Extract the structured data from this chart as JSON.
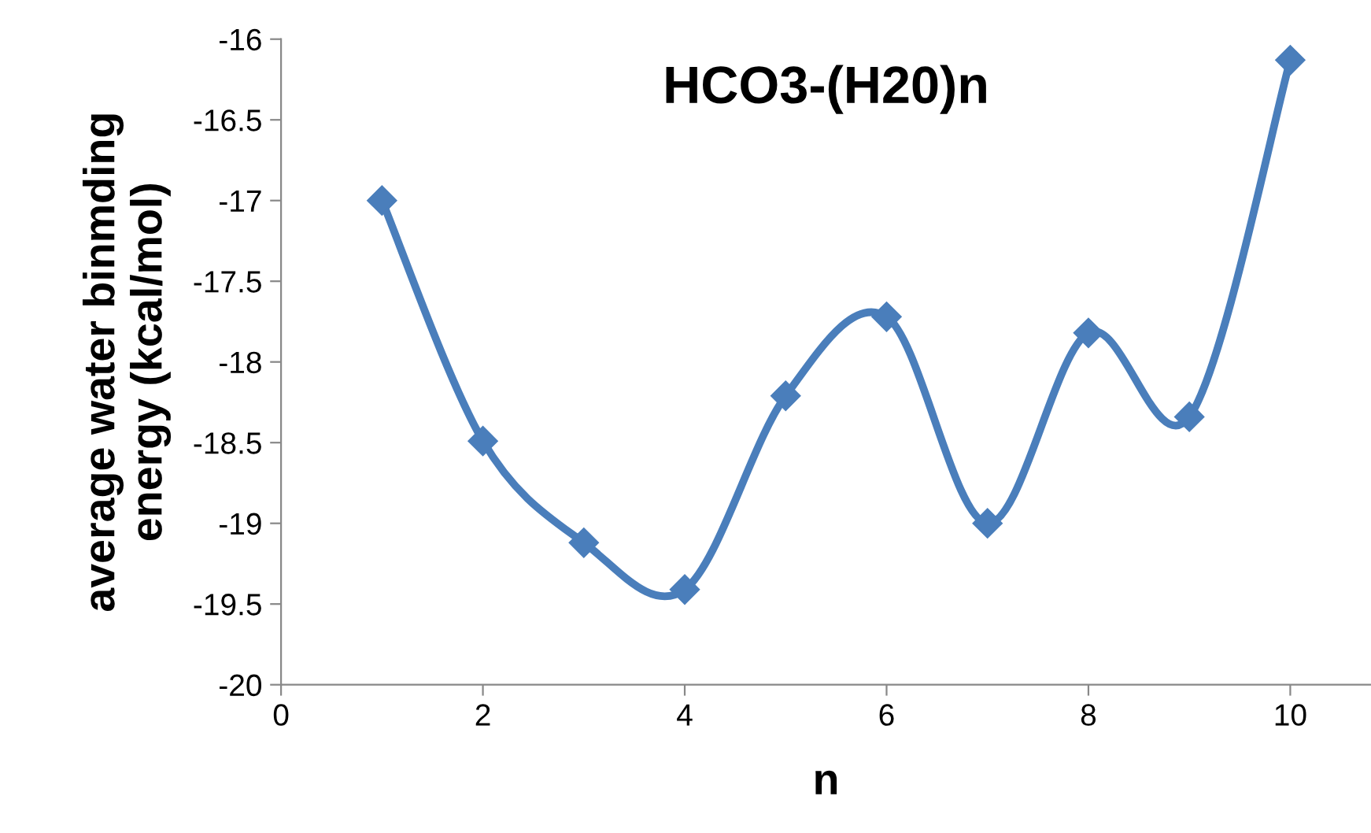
{
  "chart_data": {
    "type": "line",
    "title": "HCO3-(H20)n",
    "xlabel": "n",
    "ylabel": "average water binmding\nenergy (kcal/mol)",
    "x": [
      1,
      2,
      3,
      4,
      5,
      6,
      7,
      8,
      9,
      10
    ],
    "series": [
      {
        "color": "#4a7ebb",
        "values": [
          -17.0,
          -18.49,
          -19.12,
          -19.41,
          -18.21,
          -17.72,
          -19.0,
          -17.82,
          -18.34,
          -16.13
        ]
      }
    ],
    "xlim": [
      0,
      10.8
    ],
    "xticks": [
      0,
      2,
      4,
      6,
      8,
      10
    ],
    "ylim": [
      -20,
      -16
    ],
    "yticks": [
      -20,
      -19.5,
      -19,
      -18.5,
      -18,
      -17.5,
      -17,
      -16.5,
      -16
    ],
    "marker": "diamond",
    "line_style": "solid",
    "grid": false,
    "legend": false
  }
}
